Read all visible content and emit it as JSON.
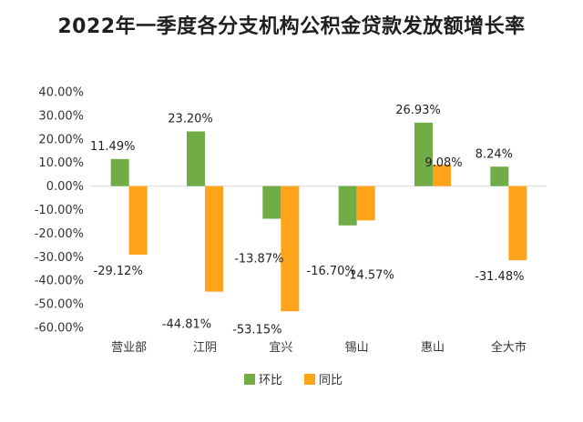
{
  "title": "2022年一季度各分支机构公积金贷款发放额增长率",
  "chart_data": {
    "type": "bar",
    "title": "2022年一季度各分支机构公积金贷款发放额增长率",
    "categories": [
      "营业部",
      "江阴",
      "宜兴",
      "锡山",
      "惠山",
      "全大市"
    ],
    "series": [
      {
        "name": "环比",
        "color": "#70ad47",
        "values": [
          11.49,
          23.2,
          -13.87,
          -16.7,
          26.93,
          8.24
        ],
        "labels": [
          "11.49%",
          "23.20%",
          "-13.87%",
          "-16.70%",
          "26.93%",
          "8.24%"
        ]
      },
      {
        "name": "同比",
        "color": "#ffa31a",
        "values": [
          -29.12,
          -44.81,
          -53.15,
          -14.57,
          9.08,
          -31.48
        ],
        "labels": [
          "-29.12%",
          "-44.81%",
          "-53.15%",
          "-14.57%",
          "9.08%",
          "-31.48%"
        ]
      }
    ],
    "ylim": [
      -60,
      40
    ],
    "yticks": [
      "40.00%",
      "30.00%",
      "20.00%",
      "10.00%",
      "0.00%",
      "-10.00%",
      "-20.00%",
      "-30.00%",
      "-40.00%",
      "-50.00%",
      "-60.00%"
    ],
    "ytick_values": [
      40,
      30,
      20,
      10,
      0,
      -10,
      -20,
      -30,
      -40,
      -50,
      -60
    ],
    "xlabel": "",
    "ylabel": "",
    "grid": false,
    "legend_position": "bottom"
  }
}
